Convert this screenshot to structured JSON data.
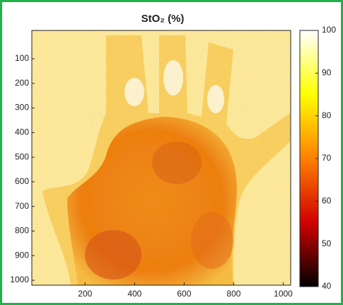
{
  "chart_data": {
    "type": "heatmap",
    "title": "StO₂ (%)",
    "xlim": [
      -15,
      1030
    ],
    "xticks": [
      200,
      400,
      600,
      800,
      1000
    ],
    "ylim": [
      1020,
      -15
    ],
    "yticks": [
      100,
      200,
      300,
      400,
      500,
      600,
      700,
      800,
      900,
      1000
    ],
    "clim": [
      40,
      100
    ],
    "cticks": [
      40,
      50,
      60,
      70,
      80,
      90,
      100
    ],
    "colormap": [
      "#000000",
      "#d00000",
      "#ff8000",
      "#ffff00",
      "#ffffff"
    ]
  }
}
